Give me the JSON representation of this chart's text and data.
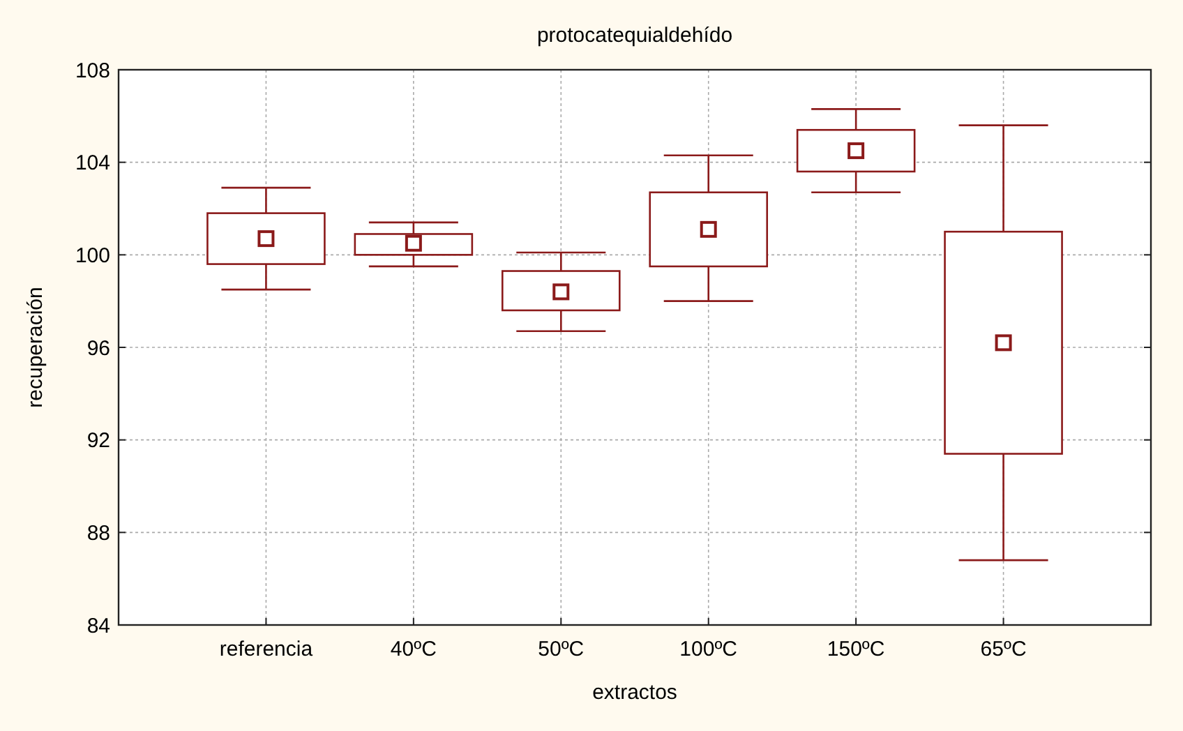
{
  "chart_data": {
    "type": "box",
    "title": "protocatequialdehído",
    "xlabel": "extractos",
    "ylabel": "recuperación",
    "categories": [
      "referencia",
      "40ºC",
      "50ºC",
      "100ºC",
      "150ºC",
      "65ºC"
    ],
    "color": "#8b1a1a",
    "marker": "square",
    "boxes": [
      {
        "low": 98.5,
        "q1": 99.6,
        "median": 100.7,
        "q3": 101.8,
        "high": 102.9
      },
      {
        "low": 99.5,
        "q1": 100.0,
        "median": 100.5,
        "q3": 100.9,
        "high": 101.4
      },
      {
        "low": 96.7,
        "q1": 97.6,
        "median": 98.4,
        "q3": 99.3,
        "high": 100.1
      },
      {
        "low": 98.0,
        "q1": 99.5,
        "median": 101.1,
        "q3": 102.7,
        "high": 104.3
      },
      {
        "low": 102.7,
        "q1": 103.6,
        "median": 104.5,
        "q3": 105.4,
        "high": 106.3
      },
      {
        "low": 86.8,
        "q1": 91.4,
        "median": 96.2,
        "q3": 101.0,
        "high": 105.6
      }
    ],
    "ylim": [
      84,
      108
    ],
    "yticks": [
      84,
      88,
      92,
      96,
      100,
      104,
      108
    ],
    "grid": true
  }
}
